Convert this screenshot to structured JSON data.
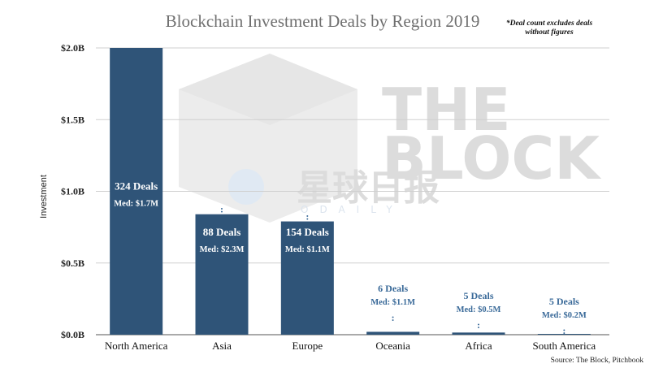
{
  "chart_data": {
    "type": "bar",
    "title": "Blockchain Investment Deals by Region 2019",
    "note": [
      "*Deal count excludes deals",
      "without figures"
    ],
    "ylabel": "Investment",
    "xlabel": "",
    "ylim": [
      0,
      2.0
    ],
    "yticks": [
      {
        "value": 0,
        "label": "$0.0B"
      },
      {
        "value": 0.5,
        "label": "$0.5B"
      },
      {
        "value": 1.0,
        "label": "$1.0B"
      },
      {
        "value": 1.5,
        "label": "$1.5B"
      },
      {
        "value": 2.0,
        "label": "$2.0B"
      }
    ],
    "categories": [
      "North America",
      "Asia",
      "Europe",
      "Oceania",
      "Africa",
      "South America"
    ],
    "values": [
      2.0,
      0.84,
      0.79,
      0.02,
      0.015,
      0.005
    ],
    "deals": [
      "324 Deals",
      "88 Deals",
      "154 Deals",
      "6 Deals",
      "5 Deals",
      "5 Deals"
    ],
    "medians": [
      "Med: $1.7M",
      "Med: $2.3M",
      "Med: $1.1M",
      "Med: $1.1M",
      "Med: $0.5M",
      "Med: $0.2M"
    ],
    "grid": true,
    "bar_color": "#2f5478",
    "label_color_outside": "#3a6a99",
    "source": "Source: The Block, Pitchbook"
  },
  "watermark": {
    "brand": [
      "THE",
      "BLOCK"
    ],
    "cn": "星球日报",
    "sub": "ODAILY"
  }
}
